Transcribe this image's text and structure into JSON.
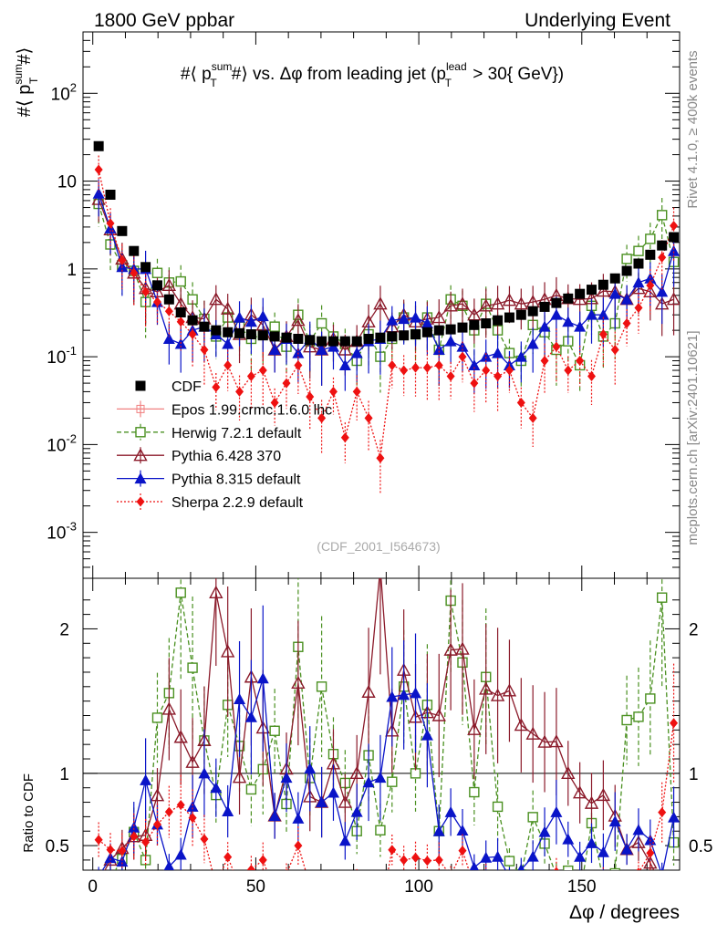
{
  "header": {
    "left": "1800 GeV ppbar",
    "right": "Underlying Event"
  },
  "side_labels": {
    "rivet": "Rivet 4.1.0, ≥ 400k events",
    "mcplots": "mcplots.cern.ch [arXiv:2401.10621]"
  },
  "watermark": "(CDF_2001_I564673)",
  "chart_data": {
    "type": "scatter",
    "title": "#⟨ p_T^sum# ⟩ vs. Δφ from leading jet  (p_T^lead > 30{ GeV})",
    "title_parts": {
      "hash": "#",
      "langle": "⟨",
      "p": "p",
      "sup": "sum",
      "sub": "T",
      "hash2": "#",
      "rangle": "⟩",
      "vs": " vs. Δφ from leading jet  (p",
      "sup2": "lead",
      "sub2": "T",
      "end": " > 30{ GeV})"
    },
    "ylabel": "#⟨ p_T^sum# ⟩",
    "ylabel_parts": {
      "a": "#⟨ p",
      "sup": "sum",
      "sub": "T",
      "b": "#⟩"
    },
    "xlabel": "Δφ / degrees",
    "ratio_ylabel": "Ratio to CDF",
    "y_scale": "log",
    "ylim": [
      0.0003,
      500
    ],
    "xlim": [
      -3,
      180
    ],
    "ratio_ylim": [
      0.33,
      2.35
    ],
    "x_ticks": [
      0,
      50,
      100,
      150
    ],
    "x_tick_labels": [
      "0",
      "50",
      "100",
      "150"
    ],
    "y_ticks": [
      0.001,
      0.01,
      0.1,
      1,
      10,
      100
    ],
    "y_tick_labels": [
      "10^-3",
      "10^-2",
      "10^-1",
      "1",
      "10",
      "10^2"
    ],
    "ratio_ticks": [
      0.5,
      1,
      2
    ],
    "ratio_tick_labels": [
      "0.5",
      "1",
      "2"
    ],
    "legend_position": "middle-left",
    "x": [
      1.8,
      5.4,
      9,
      12.6,
      16.2,
      19.8,
      23.4,
      27,
      30.6,
      34.2,
      37.8,
      41.4,
      45,
      48.6,
      52.2,
      55.8,
      59.4,
      63,
      66.6,
      70.2,
      73.8,
      77.4,
      81,
      84.6,
      88.2,
      91.8,
      95.4,
      99,
      102.6,
      106.2,
      109.8,
      113.4,
      117,
      120.6,
      124.2,
      127.8,
      131.4,
      135,
      138.6,
      142.2,
      145.8,
      149.4,
      153,
      156.6,
      160.2,
      163.8,
      167.4,
      171,
      174.6,
      178.2
    ],
    "series": [
      {
        "name": "CDF",
        "color": "#000000",
        "marker": "square",
        "values": [
          25,
          7,
          2.7,
          1.6,
          1.05,
          0.65,
          0.45,
          0.32,
          0.26,
          0.22,
          0.2,
          0.19,
          0.185,
          0.18,
          0.175,
          0.17,
          0.165,
          0.16,
          0.155,
          0.15,
          0.15,
          0.15,
          0.15,
          0.16,
          0.165,
          0.17,
          0.175,
          0.18,
          0.19,
          0.2,
          0.205,
          0.215,
          0.23,
          0.24,
          0.26,
          0.28,
          0.3,
          0.33,
          0.37,
          0.41,
          0.46,
          0.52,
          0.58,
          0.66,
          0.78,
          0.95,
          1.15,
          1.45,
          1.85,
          2.3
        ]
      },
      {
        "name": "Epos 1.99.crmc.1.6.0 lhc",
        "color": "#f08080",
        "marker": "plus-square",
        "style": "solid",
        "values": []
      },
      {
        "name": "Herwig 7.2.1 default",
        "color": "#4a9020",
        "marker": "open-square",
        "style": "dashed",
        "values": [
          5.5,
          1.9,
          1.1,
          0.95,
          0.42,
          0.9,
          0.7,
          0.72,
          0.45,
          0.27,
          0.17,
          0.28,
          0.22,
          0.16,
          0.18,
          0.22,
          0.13,
          0.3,
          0.15,
          0.24,
          0.17,
          0.14,
          0.09,
          0.18,
          0.1,
          0.16,
          0.28,
          0.18,
          0.28,
          0.12,
          0.45,
          0.38,
          0.2,
          0.4,
          0.2,
          0.11,
          0.09,
          0.23,
          0.19,
          0.12,
          0.15,
          0.08,
          0.38,
          0.17,
          0.24,
          1.3,
          1.6,
          2.2,
          4.1,
          1.2
        ]
      },
      {
        "name": "Pythia 6.428 370",
        "color": "#8b1a2a",
        "marker": "open-triangle",
        "style": "solid",
        "values": [
          6.2,
          2.8,
          1.3,
          0.9,
          0.6,
          0.55,
          0.65,
          0.4,
          0.28,
          0.27,
          0.45,
          0.35,
          0.18,
          0.3,
          0.23,
          0.12,
          0.17,
          0.26,
          0.13,
          0.12,
          0.16,
          0.12,
          0.15,
          0.25,
          0.4,
          0.22,
          0.3,
          0.25,
          0.27,
          0.28,
          0.38,
          0.4,
          0.3,
          0.38,
          0.4,
          0.44,
          0.4,
          0.42,
          0.45,
          0.5,
          0.46,
          0.45,
          0.46,
          0.56,
          0.55,
          0.45,
          0.6,
          0.55,
          0.4,
          0.45
        ]
      },
      {
        "name": "Pythia 8.315 default",
        "color": "#0a14c8",
        "marker": "filled-triangle",
        "style": "solid",
        "values": [
          7.2,
          2.9,
          1.05,
          1.0,
          1.0,
          0.42,
          0.16,
          0.14,
          0.2,
          0.22,
          0.18,
          0.14,
          0.28,
          0.25,
          0.29,
          0.12,
          0.16,
          0.11,
          0.16,
          0.12,
          0.13,
          0.08,
          0.11,
          0.15,
          0.16,
          0.26,
          0.27,
          0.28,
          0.24,
          0.12,
          0.15,
          0.13,
          0.08,
          0.1,
          0.11,
          0.08,
          0.1,
          0.14,
          0.22,
          0.3,
          0.25,
          0.22,
          0.3,
          0.3,
          0.52,
          0.45,
          0.7,
          0.78,
          0.55,
          1.6
        ]
      },
      {
        "name": "Sherpa 2.2.9 default",
        "color": "#ee1111",
        "marker": "diamond",
        "style": "dotted",
        "values": [
          13.5,
          3.3,
          1.25,
          0.9,
          0.55,
          0.42,
          0.33,
          0.25,
          0.18,
          0.12,
          0.045,
          0.08,
          0.04,
          0.06,
          0.07,
          0.03,
          0.05,
          0.08,
          0.035,
          0.02,
          0.04,
          0.012,
          0.04,
          0.02,
          0.007,
          0.08,
          0.07,
          0.075,
          0.075,
          0.08,
          0.06,
          0.1,
          0.05,
          0.07,
          0.06,
          0.07,
          0.03,
          0.02,
          0.09,
          0.13,
          0.07,
          0.09,
          0.06,
          0.18,
          0.12,
          0.24,
          0.36,
          0.65,
          1.35,
          3.1
        ]
      }
    ]
  }
}
